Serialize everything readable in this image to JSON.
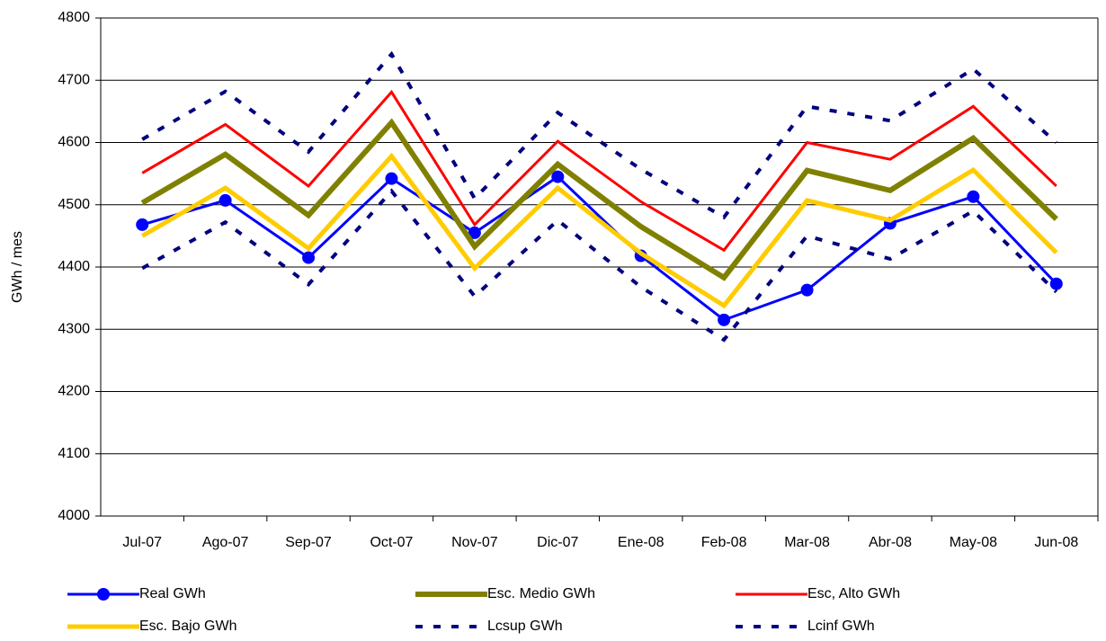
{
  "chart_data": {
    "type": "line",
    "y_label": "GWh / mes",
    "categories": [
      "Jul-07",
      "Ago-07",
      "Sep-07",
      "Oct-07",
      "Nov-07",
      "Dic-07",
      "Ene-08",
      "Feb-08",
      "Mar-08",
      "Abr-08",
      "May-08",
      "Jun-08"
    ],
    "ylim": [
      4000,
      4800
    ],
    "yticks": [
      4000,
      4100,
      4200,
      4300,
      4400,
      4500,
      4600,
      4700,
      4800
    ],
    "grid": true,
    "series": [
      {
        "name": "Real  GWh",
        "color": "#0000ff",
        "width": 3,
        "marker": "circle",
        "values": [
          4468,
          4507,
          4415,
          4542,
          4455,
          4545,
          4418,
          4315,
          4363,
          4470,
          4513,
          4373
        ]
      },
      {
        "name": "Esc. Medio GWh",
        "color": "#808000",
        "width": 6,
        "values": [
          4503,
          4581,
          4483,
          4632,
          4433,
          4565,
          4465,
          4383,
          4555,
          4523,
          4607,
          4477
        ]
      },
      {
        "name": "Esc, Alto GWh",
        "color": "#ff0000",
        "width": 3,
        "values": [
          4551,
          4629,
          4530,
          4681,
          4468,
          4602,
          4505,
          4427,
          4600,
          4573,
          4658,
          4530
        ]
      },
      {
        "name": "Esc. Bajo GWh",
        "color": "#ffcc00",
        "width": 5,
        "values": [
          4450,
          4527,
          4430,
          4578,
          4398,
          4527,
          4422,
          4338,
          4507,
          4475,
          4556,
          4423
        ]
      },
      {
        "name": "Lcsup GWh",
        "color": "#000080",
        "width": 4,
        "dashed": true,
        "values": [
          4605,
          4682,
          4585,
          4742,
          4510,
          4648,
          4557,
          4480,
          4658,
          4635,
          4718,
          4600
        ]
      },
      {
        "name": "Lcinf GWh",
        "color": "#000080",
        "width": 4,
        "dashed": true,
        "values": [
          4398,
          4472,
          4372,
          4522,
          4353,
          4475,
          4368,
          4283,
          4450,
          4413,
          4490,
          4360
        ]
      }
    ]
  }
}
